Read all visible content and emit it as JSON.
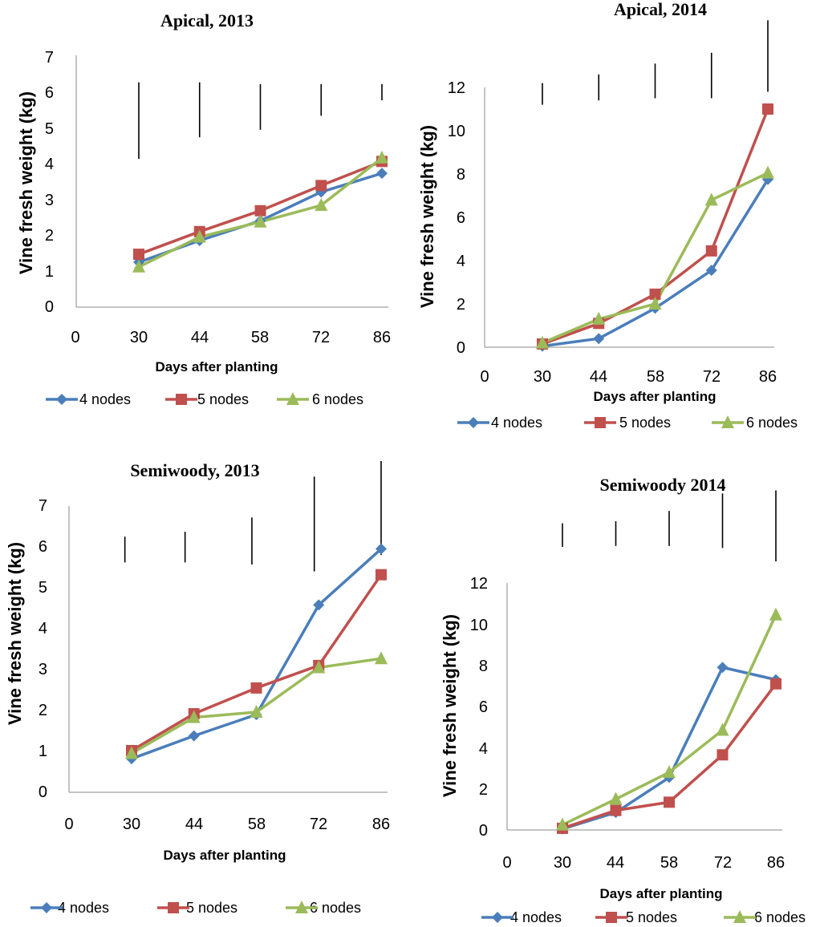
{
  "chart_data": [
    {
      "type": "line",
      "title": "Apical, 2013",
      "xlabel": "Days after planting",
      "ylabel": "Vine fresh weight (kg)",
      "x": [
        30,
        44,
        58,
        72,
        86
      ],
      "x_ticks": [
        "0",
        "30",
        "44",
        "58",
        "72",
        "86"
      ],
      "ylim": [
        0,
        7
      ],
      "y_ticks": [
        "0",
        "1",
        "2",
        "3",
        "4",
        "5",
        "6",
        "7"
      ],
      "grid": false,
      "legend_position": "bottom",
      "series": [
        {
          "name": "4 nodes",
          "values": [
            1.25,
            1.85,
            2.4,
            3.2,
            3.72
          ],
          "color": "#4a7ebb",
          "marker": "diamond"
        },
        {
          "name": "5 nodes",
          "values": [
            1.47,
            2.1,
            2.68,
            3.38,
            4.05
          ],
          "color": "#c0504d",
          "marker": "square"
        },
        {
          "name": "6 nodes",
          "values": [
            1.12,
            1.95,
            2.37,
            2.83,
            4.15
          ],
          "color": "#9bbb59",
          "marker": "triangle"
        }
      ],
      "error_bars": [
        {
          "x": 30,
          "low": 4.12,
          "high": 6.25
        },
        {
          "x": 44,
          "low": 4.72,
          "high": 6.25
        },
        {
          "x": 58,
          "low": 4.93,
          "high": 6.2
        },
        {
          "x": 72,
          "low": 5.32,
          "high": 6.2
        },
        {
          "x": 86,
          "low": 5.75,
          "high": 6.2
        }
      ]
    },
    {
      "type": "line",
      "title": "Apical, 2014",
      "xlabel": "Days after planting",
      "ylabel": "Vine fresh weight (kg)",
      "x": [
        30,
        44,
        58,
        72,
        86
      ],
      "x_ticks": [
        "0",
        "30",
        "44",
        "58",
        "72",
        "86"
      ],
      "ylim": [
        0,
        12
      ],
      "y_ticks": [
        "0",
        "2",
        "4",
        "6",
        "8",
        "10",
        "12"
      ],
      "grid": false,
      "legend_position": "bottom",
      "series": [
        {
          "name": "4 nodes",
          "values": [
            0.05,
            0.4,
            1.8,
            3.55,
            7.75
          ],
          "color": "#4a7ebb",
          "marker": "diamond"
        },
        {
          "name": "5 nodes",
          "values": [
            0.15,
            1.1,
            2.45,
            4.45,
            11.0
          ],
          "color": "#c0504d",
          "marker": "square"
        },
        {
          "name": "6 nodes",
          "values": [
            0.2,
            1.3,
            2.0,
            6.8,
            8.05
          ],
          "color": "#9bbb59",
          "marker": "triangle"
        }
      ],
      "error_bars": [
        {
          "x": 30,
          "low": 11.2,
          "high": 12.2
        },
        {
          "x": 44,
          "low": 11.4,
          "high": 12.6
        },
        {
          "x": 58,
          "low": 11.5,
          "high": 13.1
        },
        {
          "x": 72,
          "low": 11.5,
          "high": 13.6
        },
        {
          "x": 86,
          "low": 11.8,
          "high": 15.1
        }
      ]
    },
    {
      "type": "line",
      "title": "Semiwoody, 2013",
      "xlabel": "Days after planting",
      "ylabel": "Vine fresh weight (kg)",
      "x": [
        30,
        44,
        58,
        72,
        86
      ],
      "x_ticks": [
        "0",
        "30",
        "44",
        "58",
        "72",
        "86"
      ],
      "ylim": [
        0,
        7
      ],
      "y_ticks": [
        "0",
        "1",
        "2",
        "3",
        "4",
        "5",
        "6",
        "7"
      ],
      "grid": false,
      "legend_position": "bottom",
      "series": [
        {
          "name": "4 nodes",
          "values": [
            0.82,
            1.38,
            1.9,
            4.58,
            5.95
          ],
          "color": "#4a7ebb",
          "marker": "diamond"
        },
        {
          "name": "5 nodes",
          "values": [
            1.02,
            1.92,
            2.55,
            3.1,
            5.32
          ],
          "color": "#c0504d",
          "marker": "square"
        },
        {
          "name": "6 nodes",
          "values": [
            0.95,
            1.83,
            1.96,
            3.05,
            3.27
          ],
          "color": "#9bbb59",
          "marker": "triangle"
        }
      ],
      "error_bars": [
        {
          "x": 28.5,
          "low": 5.62,
          "high": 6.25
        },
        {
          "x": 42,
          "low": 5.62,
          "high": 6.37
        },
        {
          "x": 57,
          "low": 5.57,
          "high": 6.72
        },
        {
          "x": 71,
          "low": 5.4,
          "high": 7.72
        },
        {
          "x": 86,
          "low": 5.8,
          "high": 8.1
        }
      ]
    },
    {
      "type": "line",
      "title": "Semiwoody 2014",
      "xlabel": "Days after planting",
      "ylabel": "Vine fresh weight (kg)",
      "x": [
        30,
        44,
        58,
        72,
        86
      ],
      "x_ticks": [
        "0",
        "30",
        "44",
        "58",
        "72",
        "86"
      ],
      "ylim": [
        0,
        12
      ],
      "y_ticks": [
        "0",
        "2",
        "4",
        "6",
        "8",
        "10",
        "12"
      ],
      "grid": false,
      "legend_position": "bottom",
      "series": [
        {
          "name": "4 nodes",
          "values": [
            0.05,
            0.85,
            2.55,
            7.9,
            7.3
          ],
          "color": "#4a7ebb",
          "marker": "diamond"
        },
        {
          "name": "5 nodes",
          "values": [
            0.08,
            0.95,
            1.35,
            3.65,
            7.1
          ],
          "color": "#c0504d",
          "marker": "square"
        },
        {
          "name": "6 nodes",
          "values": [
            0.25,
            1.5,
            2.8,
            4.85,
            10.45
          ],
          "color": "#9bbb59",
          "marker": "triangle"
        }
      ],
      "error_bars": [
        {
          "x": 30,
          "low": 13.75,
          "high": 14.9
        },
        {
          "x": 44,
          "low": 13.8,
          "high": 15.0
        },
        {
          "x": 58,
          "low": 13.8,
          "high": 15.5
        },
        {
          "x": 72,
          "low": 13.7,
          "high": 16.35
        },
        {
          "x": 86,
          "low": 13.05,
          "high": 16.5
        }
      ]
    }
  ]
}
